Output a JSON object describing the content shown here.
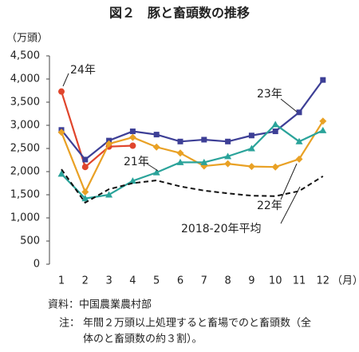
{
  "chart_data": {
    "type": "line",
    "title": "図２　豚と畜頭数の推移",
    "y_unit": "（万頭）",
    "x_unit": "（月）",
    "categories": [
      "1",
      "2",
      "3",
      "4",
      "5",
      "6",
      "7",
      "8",
      "9",
      "10",
      "11",
      "12"
    ],
    "series": [
      {
        "name": "24年",
        "color": "#e0452c",
        "marker": "circle",
        "values": [
          3730,
          2100,
          2540,
          2560,
          null,
          null,
          null,
          null,
          null,
          null,
          null,
          null
        ]
      },
      {
        "name": "23年",
        "color": "#3d3f96",
        "marker": "square",
        "values": [
          2900,
          2260,
          2670,
          2870,
          2800,
          2650,
          2690,
          2650,
          2780,
          2870,
          3280,
          3980
        ]
      },
      {
        "name": "22年",
        "color": "#e9a125",
        "marker": "diamond",
        "values": [
          2850,
          1560,
          2600,
          2740,
          2530,
          2400,
          2120,
          2170,
          2110,
          2100,
          2270,
          3090
        ]
      },
      {
        "name": "21年",
        "color": "#2aa39a",
        "marker": "triangle",
        "values": [
          1950,
          1420,
          1500,
          1800,
          1980,
          2200,
          2200,
          2330,
          2500,
          3020,
          2650,
          2890
        ]
      },
      {
        "name": "2018-20年平均",
        "color": "#111111",
        "marker": "none",
        "dashed": true,
        "values": [
          2050,
          1330,
          1620,
          1750,
          1810,
          1680,
          1590,
          1530,
          1480,
          1470,
          1580,
          1900
        ]
      }
    ],
    "ylim": [
      0,
      4500
    ],
    "yticks": [
      0,
      500,
      {
        "value": 1000,
        "label": "1,000"
      },
      {
        "value": 1500,
        "label": "1,500"
      },
      {
        "value": 2000,
        "label": "2,000"
      },
      {
        "value": 2500,
        "label": "2,500"
      },
      {
        "value": 3000,
        "label": "3,000"
      },
      {
        "value": 3500,
        "label": "3,500"
      },
      {
        "value": 4000,
        "label": "4,000"
      },
      {
        "value": 4500,
        "label": "4,500"
      }
    ],
    "grid": false,
    "source": "資料：中国農業農村部",
    "note_label": "注：",
    "note_lines": [
      "年間２万頭以上処理すると畜場でのと畜頭数（全",
      "体のと畜頭数の約３割）。"
    ]
  }
}
